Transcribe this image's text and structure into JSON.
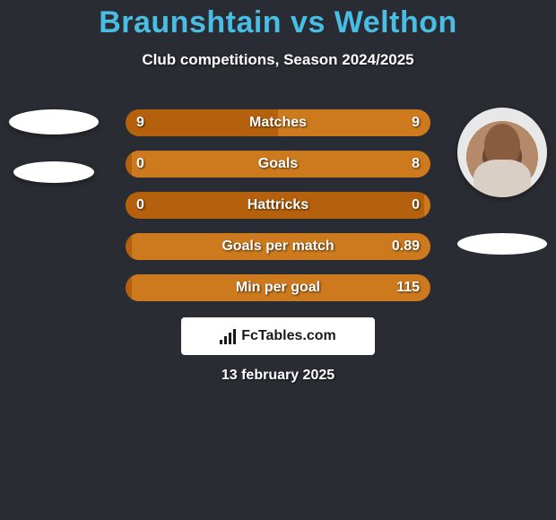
{
  "title_color": "#49bde4",
  "background_color": "#2a2c33",
  "text_color": "#ffffff",
  "player_left": {
    "name": "Braunshtain"
  },
  "player_right": {
    "name": "Welthon"
  },
  "subtitle": "Club competitions, Season 2024/2025",
  "date": "13 february 2025",
  "logo_text": "FcTables.com",
  "bar_left_color": "#b5600c",
  "bar_right_color": "#cd7a1e",
  "stats": [
    {
      "label": "Matches",
      "left_value": "9",
      "right_value": "9",
      "left_pct": 50,
      "right_pct": 50
    },
    {
      "label": "Goals",
      "left_value": "0",
      "right_value": "8",
      "left_pct": 2,
      "right_pct": 98
    },
    {
      "label": "Hattricks",
      "left_value": "0",
      "right_value": "0",
      "left_pct": 2,
      "right_pct": 2
    },
    {
      "label": "Goals per match",
      "left_value": "",
      "right_value": "0.89",
      "left_pct": 2,
      "right_pct": 98
    },
    {
      "label": "Min per goal",
      "left_value": "",
      "right_value": "115",
      "left_pct": 2,
      "right_pct": 98
    }
  ]
}
